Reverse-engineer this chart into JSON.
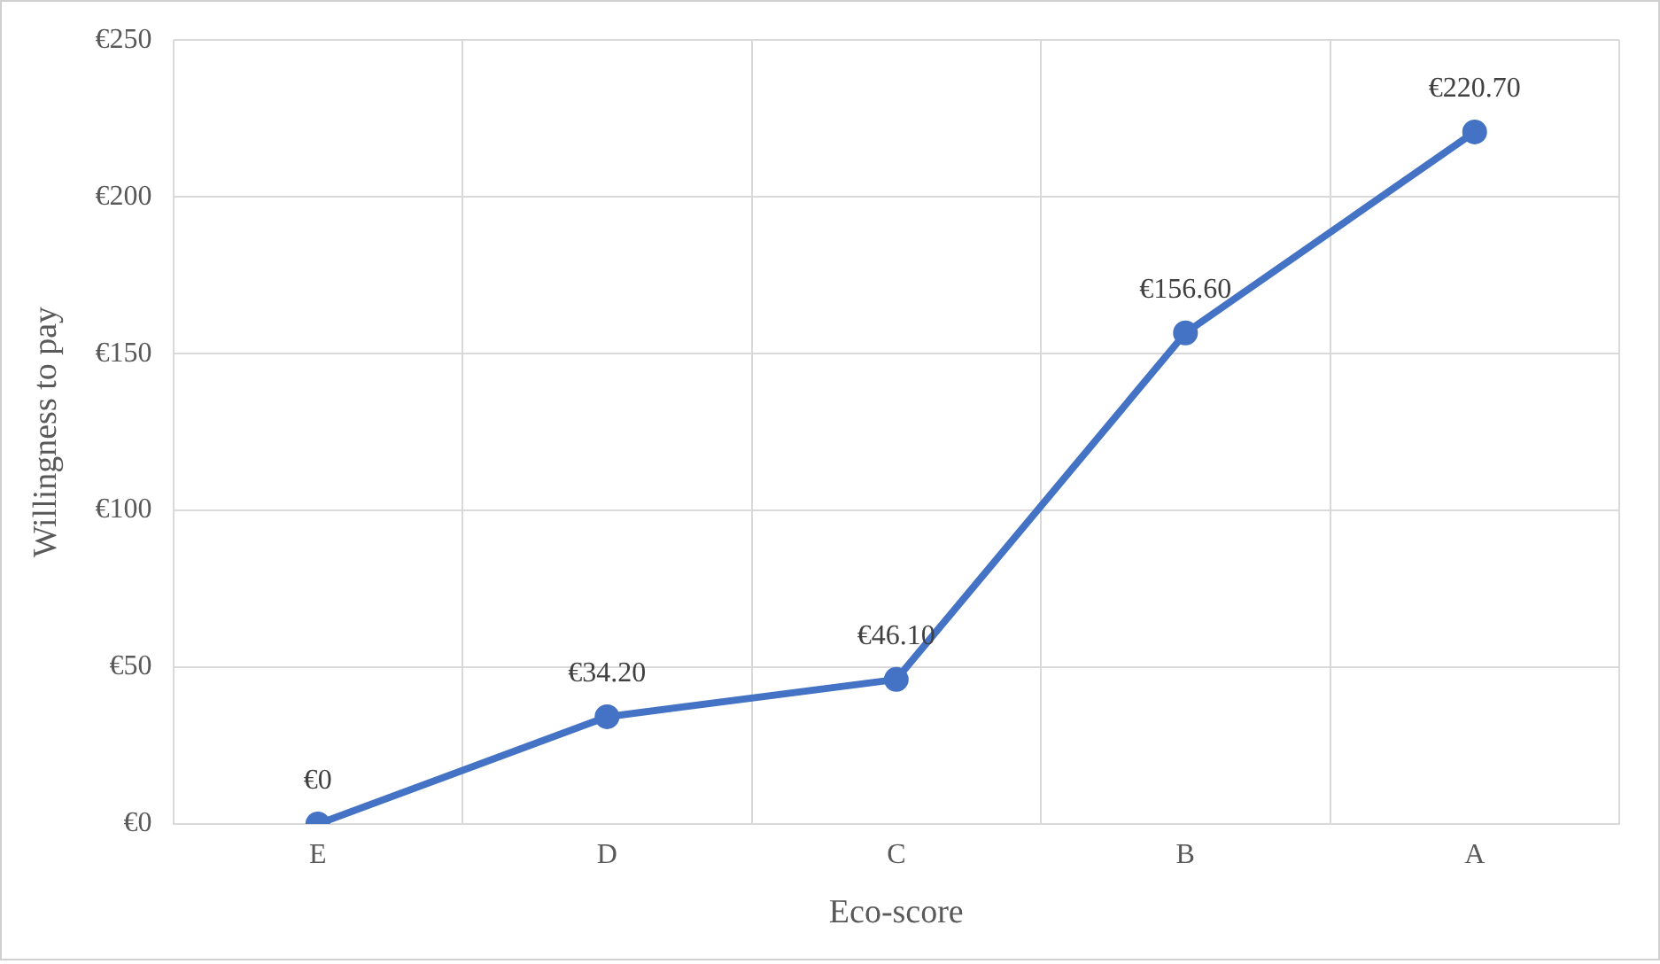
{
  "chart_data": {
    "type": "line",
    "xlabel": "Eco-score",
    "ylabel": "Willingness to pay",
    "categories": [
      "E",
      "D",
      "C",
      "B",
      "A"
    ],
    "series": [
      {
        "color": "#4472c4",
        "values": [
          0,
          34.2,
          46.1,
          156.6,
          220.7
        ],
        "value_labels": [
          "€0",
          "€34.20",
          "€46.10",
          "€156.60",
          "€220.70"
        ]
      }
    ],
    "ylim": [
      0,
      250
    ],
    "yticks": [
      {
        "value": 0,
        "label": "€0"
      },
      {
        "value": 50,
        "label": "€50"
      },
      {
        "value": 100,
        "label": "€100"
      },
      {
        "value": 150,
        "label": "€150"
      },
      {
        "value": 200,
        "label": "€200"
      },
      {
        "value": 250,
        "label": "€250"
      }
    ],
    "grid": true,
    "legend": false,
    "marker": "circle",
    "line_style": "solid"
  }
}
